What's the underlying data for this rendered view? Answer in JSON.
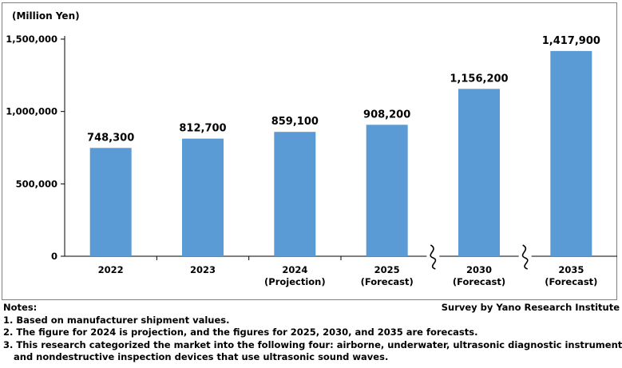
{
  "chart_data": {
    "type": "bar",
    "unit_label": "(Million Yen)",
    "categories": [
      [
        "2022"
      ],
      [
        "2023"
      ],
      [
        "2024",
        "(Projection)"
      ],
      [
        "2025",
        "(Forecast)"
      ],
      [
        "2030",
        "(Forecast)"
      ],
      [
        "2035",
        "(Forecast)"
      ]
    ],
    "values": [
      748300,
      812700,
      859100,
      908200,
      1156200,
      1417900
    ],
    "value_labels": [
      "748,300",
      "812,700",
      "859,100",
      "908,200",
      "1,156,200",
      "1,417,900"
    ],
    "yticks": [
      0,
      500000,
      1000000,
      1500000
    ],
    "ytick_labels": [
      "0",
      "500,000",
      "1,000,000",
      "1,500,000"
    ],
    "ylim": [
      0,
      1500000
    ],
    "grid": false,
    "axis_breaks_between": [
      [
        3,
        4
      ],
      [
        4,
        5
      ]
    ],
    "bar_color": "#5b9bd5"
  },
  "notes": {
    "heading": "Notes:",
    "source": "Survey by Yano Research Institute",
    "lines": [
      "1. Based on manufacturer shipment values.",
      "2. The figure for 2024 is projection, and the figures for 2025, 2030, and 2035 are forecasts.",
      "3. This research categorized the market into the following four: airborne, underwater, ultrasonic diagnostic instruments,"
    ],
    "continuation": "and nondestructive inspection devices that use ultrasonic sound waves."
  }
}
